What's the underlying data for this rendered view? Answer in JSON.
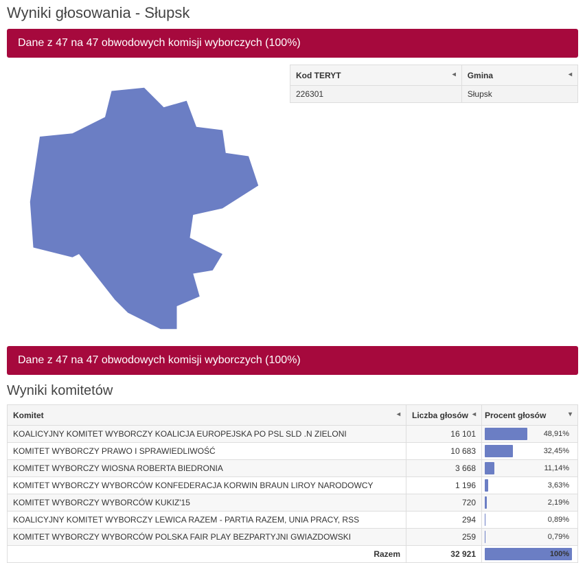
{
  "page": {
    "title": "Wyniki głosowania - Słupsk"
  },
  "banners": {
    "commission": "Dane z 47 na 47 obwodowych komisji wyborczych (100%)",
    "commission2": "Dane z 47 na 47 obwodowych komisji wyborczych (100%)"
  },
  "map": {
    "fill": "#6b7ec4"
  },
  "gminaTable": {
    "headers": {
      "teryt": "Kod TERYT",
      "gmina": "Gmina"
    },
    "rows": [
      {
        "teryt": "226301",
        "gmina": "Słupsk"
      }
    ]
  },
  "committeesSection": {
    "title": "Wyniki komitetów"
  },
  "committeesTable": {
    "headers": {
      "name": "Komitet",
      "votes": "Liczba głosów",
      "percent": "Procent głosów"
    },
    "barColor": "#6b7ec4",
    "rows": [
      {
        "name": "KOALICYJNY KOMITET WYBORCZY KOALICJA EUROPEJSKA PO PSL SLD .N ZIELONI",
        "votes": "16 101",
        "percent": "48,91%",
        "barPct": 48.91
      },
      {
        "name": "KOMITET WYBORCZY PRAWO I SPRAWIEDLIWOŚĆ",
        "votes": "10 683",
        "percent": "32,45%",
        "barPct": 32.45
      },
      {
        "name": "KOMITET WYBORCZY WIOSNA ROBERTA BIEDRONIA",
        "votes": "3 668",
        "percent": "11,14%",
        "barPct": 11.14
      },
      {
        "name": "KOMITET WYBORCZY WYBORCÓW KONFEDERACJA KORWIN BRAUN LIROY NARODOWCY",
        "votes": "1 196",
        "percent": "3,63%",
        "barPct": 3.63
      },
      {
        "name": "KOMITET WYBORCZY WYBORCÓW KUKIZ'15",
        "votes": "720",
        "percent": "2,19%",
        "barPct": 2.19
      },
      {
        "name": "KOALICYJNY KOMITET WYBORCZY LEWICA RAZEM - PARTIA RAZEM, UNIA PRACY, RSS",
        "votes": "294",
        "percent": "0,89%",
        "barPct": 0.89
      },
      {
        "name": "KOMITET WYBORCZY WYBORCÓW POLSKA FAIR PLAY BEZPARTYJNI GWIAZDOWSKI",
        "votes": "259",
        "percent": "0,79%",
        "barPct": 0.79
      }
    ],
    "total": {
      "label": "Razem",
      "votes": "32 921",
      "percent": "100%",
      "barPct": 100
    }
  }
}
